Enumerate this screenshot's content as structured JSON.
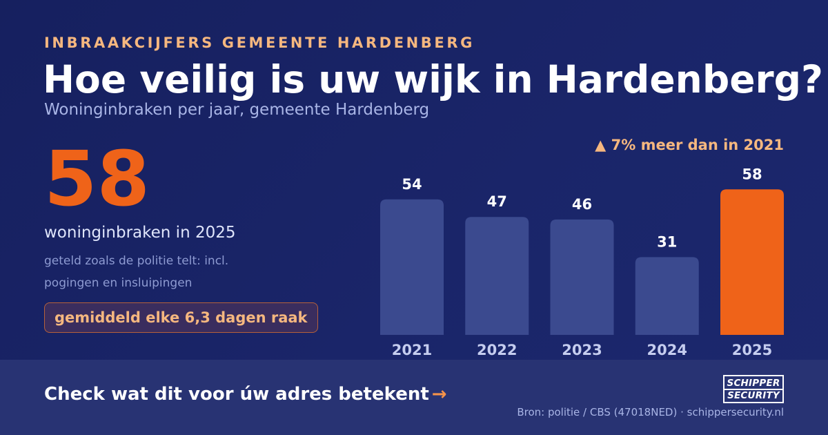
{
  "header": {
    "eyebrow": "INBRAAKCIJFERS GEMEENTE HARDENBERG",
    "title": "Hoe veilig is uw wijk in Hardenberg?",
    "subtitle": "Woninginbraken per jaar, gemeente Hardenberg"
  },
  "highlight": {
    "number": "58",
    "label": "woninginbraken in 2025",
    "note": "geteld zoals de politie telt: incl. pogingen en insluipingen",
    "pill": "gemiddeld elke 6,3 dagen raak"
  },
  "chart_data": {
    "type": "bar",
    "categories": [
      "2021",
      "2022",
      "2023",
      "2024",
      "2025"
    ],
    "values": [
      54,
      47,
      46,
      31,
      58
    ],
    "highlight_index": 4,
    "annotation": "▲ 7% meer dan in 2021",
    "colors": {
      "bar": "#3b4a8f",
      "highlight": "#ef6319",
      "value_label": "#ffffff",
      "axis_label": "#c5cdef"
    },
    "ylim": [
      0,
      60
    ],
    "grid": false
  },
  "footer": {
    "cta": "Check wat dit voor úw adres betekent",
    "cta_arrow": "→",
    "logo_line1": "SCHIPPER",
    "logo_line2": "SECURITY",
    "source": "Bron: politie / CBS (47018NED) · schippersecurity.nl"
  }
}
